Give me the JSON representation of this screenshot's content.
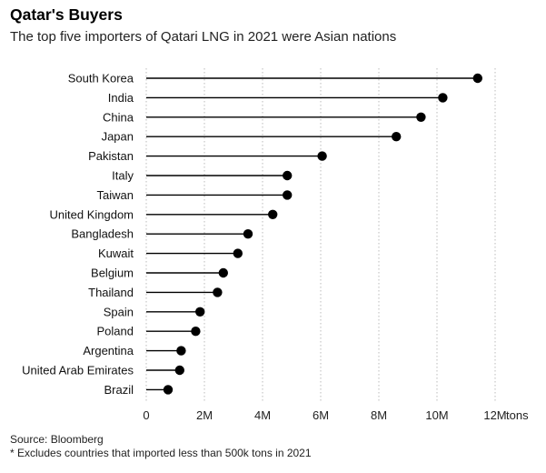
{
  "chart_data": {
    "type": "lollipop",
    "title": "Qatar's Buyers",
    "subtitle": "The top five importers of Qatari LNG in 2021 were Asian nations",
    "categories": [
      "South Korea",
      "India",
      "China",
      "Japan",
      "Pakistan",
      "Italy",
      "Taiwan",
      "United Kingdom",
      "Bangladesh",
      "Kuwait",
      "Belgium",
      "Thailand",
      "Spain",
      "Poland",
      "Argentina",
      "United Arab Emirates",
      "Brazil"
    ],
    "values": [
      11.4,
      10.2,
      9.45,
      8.6,
      6.05,
      4.85,
      4.85,
      4.35,
      3.5,
      3.15,
      2.65,
      2.45,
      1.85,
      1.7,
      1.2,
      1.15,
      0.75
    ],
    "xlim": [
      0,
      12
    ],
    "xticks": [
      0,
      2,
      4,
      6,
      8,
      10,
      12
    ],
    "xtick_labels": [
      "0",
      "2M",
      "4M",
      "6M",
      "8M",
      "10M",
      "12M"
    ],
    "x_unit": "tons",
    "grid": true,
    "source": "Source: Bloomberg",
    "footnote": "* Excludes countries that imported less than 500k tons in 2021"
  }
}
